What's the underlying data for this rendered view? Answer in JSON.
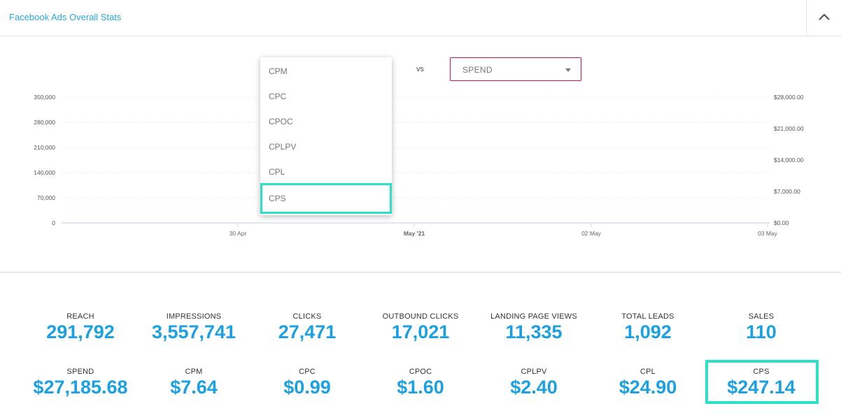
{
  "header": {
    "title": "Facebook Ads Overall Stats"
  },
  "chart_controls": {
    "vs_label": "vs",
    "right_metric_select": {
      "value": "SPEND"
    },
    "left_metric_dropdown": {
      "options": [
        "CPM",
        "CPC",
        "CPOC",
        "CPLPV",
        "CPL",
        "CPS"
      ],
      "highlighted": "CPS"
    }
  },
  "chart_data": {
    "type": "line",
    "x_ticks": [
      "30 Apr",
      "May '21",
      "02 May",
      "03 May"
    ],
    "y_left_ticks": [
      "0",
      "70,000",
      "140,000",
      "210,000",
      "280,000",
      "350,000"
    ],
    "y_left_range": [
      0,
      350000
    ],
    "y_right_ticks": [
      "$0.00",
      "$7,000.00",
      "$14,000.00",
      "$21,000.00",
      "$28,000.00"
    ],
    "y_right_range": [
      0,
      28000
    ],
    "grid": true,
    "series": []
  },
  "stats_row1": [
    {
      "label": "REACH",
      "value": "291,792"
    },
    {
      "label": "IMPRESSIONS",
      "value": "3,557,741"
    },
    {
      "label": "CLICKS",
      "value": "27,471"
    },
    {
      "label": "OUTBOUND CLICKS",
      "value": "17,021"
    },
    {
      "label": "LANDING PAGE VIEWS",
      "value": "11,335"
    },
    {
      "label": "TOTAL LEADS",
      "value": "1,092"
    },
    {
      "label": "SALES",
      "value": "110"
    }
  ],
  "stats_row2": [
    {
      "label": "SPEND",
      "value": "$27,185.68"
    },
    {
      "label": "CPM",
      "value": "$7.64"
    },
    {
      "label": "CPC",
      "value": "$0.99"
    },
    {
      "label": "CPOC",
      "value": "$1.60"
    },
    {
      "label": "CPLPV",
      "value": "$2.40"
    },
    {
      "label": "CPL",
      "value": "$24.90"
    },
    {
      "label": "CPS",
      "value": "$247.14"
    }
  ],
  "colors": {
    "accent": "#1ba1e2",
    "title": "#29a9e0",
    "highlight": "#2de0c8",
    "select_border": "#c2185b"
  }
}
